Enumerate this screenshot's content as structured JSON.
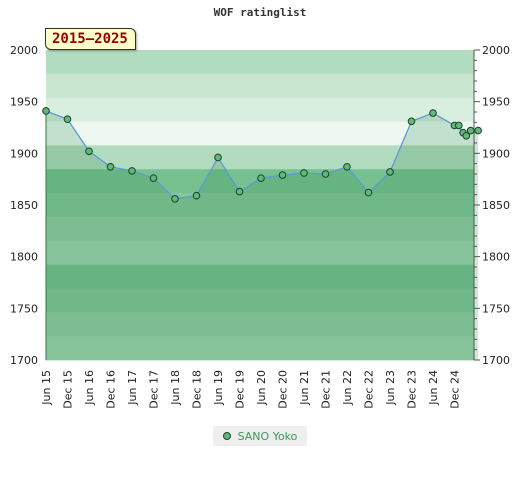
{
  "chart_data": {
    "type": "line",
    "title": "WOF ratinglist",
    "period_label": "2015—2025",
    "ylim": [
      1700,
      2000
    ],
    "yticks": [
      1700,
      1750,
      1800,
      1850,
      1900,
      1950,
      2000
    ],
    "xtick_labels": [
      "Jun 15",
      "Dec 15",
      "Jun 16",
      "Dec 16",
      "Jun 17",
      "Dec 17",
      "Jun 18",
      "Dec 18",
      "Jun 19",
      "Dec 19",
      "Jun 20",
      "Dec 20",
      "Jun 21",
      "Dec 21",
      "Jun 22",
      "Dec 22",
      "Jun 23",
      "Dec 23",
      "Jun 24",
      "Dec 24"
    ],
    "legend_position": "bottom-center",
    "series": [
      {
        "name": "SANO Yoko",
        "color": "#5fb97a",
        "line_color": "#5b9bd5",
        "points": [
          {
            "x": 0.0,
            "y": 1941
          },
          {
            "x": 1.0,
            "y": 1933
          },
          {
            "x": 2.0,
            "y": 1902
          },
          {
            "x": 3.0,
            "y": 1887
          },
          {
            "x": 4.0,
            "y": 1883
          },
          {
            "x": 5.0,
            "y": 1876
          },
          {
            "x": 6.0,
            "y": 1856
          },
          {
            "x": 7.0,
            "y": 1859
          },
          {
            "x": 8.0,
            "y": 1896
          },
          {
            "x": 9.0,
            "y": 1863
          },
          {
            "x": 10.0,
            "y": 1876
          },
          {
            "x": 11.0,
            "y": 1879
          },
          {
            "x": 12.0,
            "y": 1881
          },
          {
            "x": 13.0,
            "y": 1880
          },
          {
            "x": 14.0,
            "y": 1887
          },
          {
            "x": 15.0,
            "y": 1862
          },
          {
            "x": 16.0,
            "y": 1882
          },
          {
            "x": 17.0,
            "y": 1931
          },
          {
            "x": 18.0,
            "y": 1939
          },
          {
            "x": 19.0,
            "y": 1927
          },
          {
            "x": 19.2,
            "y": 1927
          },
          {
            "x": 19.4,
            "y": 1920
          },
          {
            "x": 19.55,
            "y": 1917
          },
          {
            "x": 19.75,
            "y": 1922
          },
          {
            "x": 20.1,
            "y": 1922
          }
        ]
      }
    ]
  }
}
